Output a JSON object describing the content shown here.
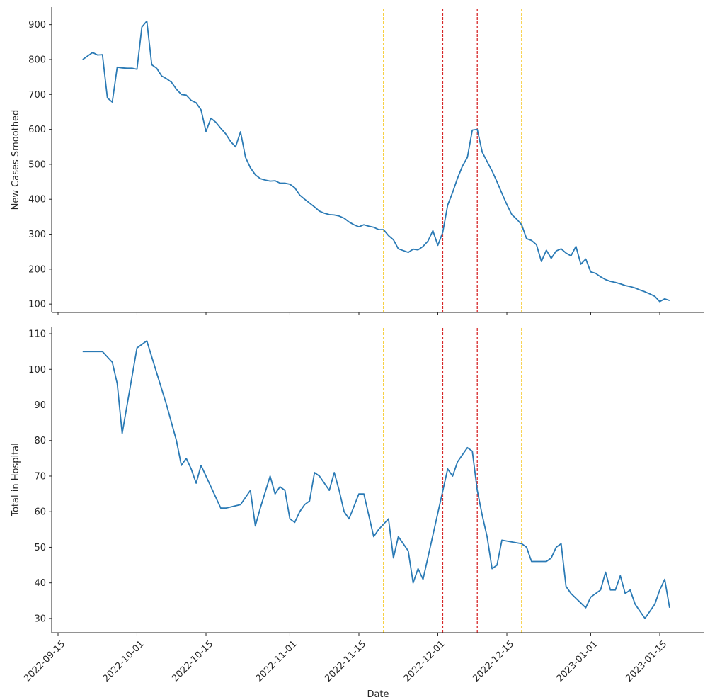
{
  "chart_data": [
    {
      "type": "line",
      "xlabel": "",
      "ylabel": "New Cases Smoothed",
      "ylim": [
        76,
        950
      ],
      "yticks": [
        100,
        200,
        300,
        400,
        500,
        600,
        700,
        800,
        900
      ],
      "color": "#2a7ab5",
      "x": [
        "2022-09-20",
        "2022-09-22",
        "2022-09-23",
        "2022-09-24",
        "2022-09-25",
        "2022-09-26",
        "2022-09-27",
        "2022-09-28",
        "2022-09-29",
        "2022-09-30",
        "2022-10-01",
        "2022-10-02",
        "2022-10-03",
        "2022-10-04",
        "2022-10-05",
        "2022-10-06",
        "2022-10-07",
        "2022-10-08",
        "2022-10-09",
        "2022-10-10",
        "2022-10-11",
        "2022-10-12",
        "2022-10-13",
        "2022-10-14",
        "2022-10-15",
        "2022-10-16",
        "2022-10-17",
        "2022-10-18",
        "2022-10-19",
        "2022-10-20",
        "2022-10-21",
        "2022-10-22",
        "2022-10-23",
        "2022-10-24",
        "2022-10-25",
        "2022-10-26",
        "2022-10-27",
        "2022-10-28",
        "2022-10-29",
        "2022-10-30",
        "2022-10-31",
        "2022-11-01",
        "2022-11-02",
        "2022-11-03",
        "2022-11-04",
        "2022-11-05",
        "2022-11-06",
        "2022-11-07",
        "2022-11-08",
        "2022-11-09",
        "2022-11-10",
        "2022-11-11",
        "2022-11-12",
        "2022-11-13",
        "2022-11-14",
        "2022-11-15",
        "2022-11-16",
        "2022-11-17",
        "2022-11-18",
        "2022-11-19",
        "2022-11-20",
        "2022-11-21",
        "2022-11-22",
        "2022-11-23",
        "2022-11-24",
        "2022-11-25",
        "2022-11-26",
        "2022-11-27",
        "2022-11-28",
        "2022-11-29",
        "2022-11-30",
        "2022-12-01",
        "2022-12-02",
        "2022-12-03",
        "2022-12-04",
        "2022-12-05",
        "2022-12-06",
        "2022-12-07",
        "2022-12-08",
        "2022-12-09",
        "2022-12-10",
        "2022-12-11",
        "2022-12-12",
        "2022-12-13",
        "2022-12-14",
        "2022-12-15",
        "2022-12-16",
        "2022-12-17",
        "2022-12-18",
        "2022-12-19",
        "2022-12-20",
        "2022-12-21",
        "2022-12-22",
        "2022-12-23",
        "2022-12-24",
        "2022-12-25",
        "2022-12-26",
        "2022-12-27",
        "2022-12-28",
        "2022-12-29",
        "2022-12-30",
        "2022-12-31",
        "2023-01-01",
        "2023-01-02",
        "2023-01-03",
        "2023-01-04",
        "2023-01-05",
        "2023-01-06",
        "2023-01-07",
        "2023-01-08",
        "2023-01-09",
        "2023-01-10",
        "2023-01-11",
        "2023-01-12",
        "2023-01-13",
        "2023-01-14",
        "2023-01-15",
        "2023-01-16",
        "2023-01-17"
      ],
      "values": [
        800,
        820,
        813,
        814,
        690,
        678,
        778,
        776,
        775,
        775,
        772,
        893,
        910,
        785,
        775,
        753,
        745,
        735,
        715,
        700,
        698,
        683,
        676,
        656,
        594,
        632,
        620,
        603,
        587,
        565,
        550,
        593,
        520,
        490,
        470,
        459,
        455,
        452,
        453,
        446,
        446,
        443,
        433,
        412,
        400,
        389,
        378,
        366,
        360,
        356,
        355,
        352,
        346,
        335,
        327,
        321,
        327,
        323,
        320,
        313,
        313,
        296,
        284,
        258,
        253,
        248,
        257,
        255,
        265,
        280,
        310,
        268,
        305,
        383,
        420,
        460,
        495,
        520,
        598,
        600,
        535,
        508,
        481,
        450,
        417,
        385,
        356,
        343,
        327,
        287,
        282,
        270,
        222,
        254,
        231,
        252,
        258,
        246,
        238,
        265,
        214,
        229,
        192,
        188,
        178,
        170,
        165,
        162,
        158,
        153,
        150,
        146,
        140,
        135,
        129,
        122,
        107,
        115,
        110
      ]
    },
    {
      "type": "line",
      "xlabel": "Date",
      "ylabel": "Total in Hospital",
      "ylim": [
        26,
        112
      ],
      "yticks": [
        30,
        40,
        50,
        60,
        70,
        80,
        90,
        100,
        110
      ],
      "xticks": [
        "2022-09-15",
        "2022-10-01",
        "2022-10-15",
        "2022-11-01",
        "2022-11-15",
        "2022-12-01",
        "2022-12-15",
        "2023-01-01",
        "2023-01-15"
      ],
      "color": "#2a7ab5",
      "x": [
        "2022-09-20",
        "2022-09-21",
        "2022-09-22",
        "2022-09-23",
        "2022-09-24",
        "2022-09-26",
        "2022-09-27",
        "2022-09-28",
        "2022-10-01",
        "2022-10-03",
        "2022-10-07",
        "2022-10-09",
        "2022-10-10",
        "2022-10-11",
        "2022-10-12",
        "2022-10-13",
        "2022-10-14",
        "2022-10-15",
        "2022-10-18",
        "2022-10-19",
        "2022-10-22",
        "2022-10-24",
        "2022-10-25",
        "2022-10-26",
        "2022-10-28",
        "2022-10-29",
        "2022-10-30",
        "2022-10-31",
        "2022-11-01",
        "2022-11-02",
        "2022-11-03",
        "2022-11-04",
        "2022-11-05",
        "2022-11-06",
        "2022-11-07",
        "2022-11-09",
        "2022-11-10",
        "2022-11-11",
        "2022-11-12",
        "2022-11-13",
        "2022-11-15",
        "2022-11-16",
        "2022-11-18",
        "2022-11-19",
        "2022-11-21",
        "2022-11-22",
        "2022-11-23",
        "2022-11-25",
        "2022-11-26",
        "2022-11-27",
        "2022-11-28",
        "2022-12-03",
        "2022-12-04",
        "2022-12-05",
        "2022-12-07",
        "2022-12-08",
        "2022-12-09",
        "2022-12-10",
        "2022-12-11",
        "2022-12-12",
        "2022-12-13",
        "2022-12-14",
        "2022-12-18",
        "2022-12-19",
        "2022-12-20",
        "2022-12-21",
        "2022-12-23",
        "2022-12-24",
        "2022-12-25",
        "2022-12-26",
        "2022-12-27",
        "2022-12-28",
        "2022-12-31",
        "2023-01-01",
        "2023-01-03",
        "2023-01-04",
        "2023-01-05",
        "2023-01-06",
        "2023-01-07",
        "2023-01-08",
        "2023-01-09",
        "2023-01-10",
        "2023-01-12",
        "2023-01-14",
        "2023-01-15",
        "2023-01-16",
        "2023-01-17"
      ],
      "values": [
        105,
        105,
        105,
        105,
        105,
        102,
        96,
        82,
        106,
        108,
        90,
        80,
        73,
        75,
        72,
        68,
        73,
        70,
        61,
        61,
        62,
        66,
        56,
        61,
        70,
        65,
        67,
        66,
        58,
        57,
        60,
        62,
        63,
        71,
        70,
        66,
        71,
        66,
        60,
        58,
        65,
        65,
        53,
        55,
        58,
        47,
        53,
        49,
        40,
        44,
        41,
        72,
        70,
        74,
        78,
        77,
        66,
        59,
        53,
        44,
        45,
        52,
        51,
        50,
        46,
        46,
        46,
        47,
        50,
        51,
        39,
        37,
        33,
        36,
        38,
        43,
        38,
        38,
        42,
        37,
        38,
        34,
        30,
        34,
        38,
        41,
        33
      ]
    }
  ],
  "reference_lines": [
    {
      "date": "2022-11-20",
      "color": "#f5c518"
    },
    {
      "date": "2022-12-02",
      "color": "#d62728"
    },
    {
      "date": "2022-12-09",
      "color": "#d62728"
    },
    {
      "date": "2022-12-18",
      "color": "#f5c518"
    }
  ]
}
